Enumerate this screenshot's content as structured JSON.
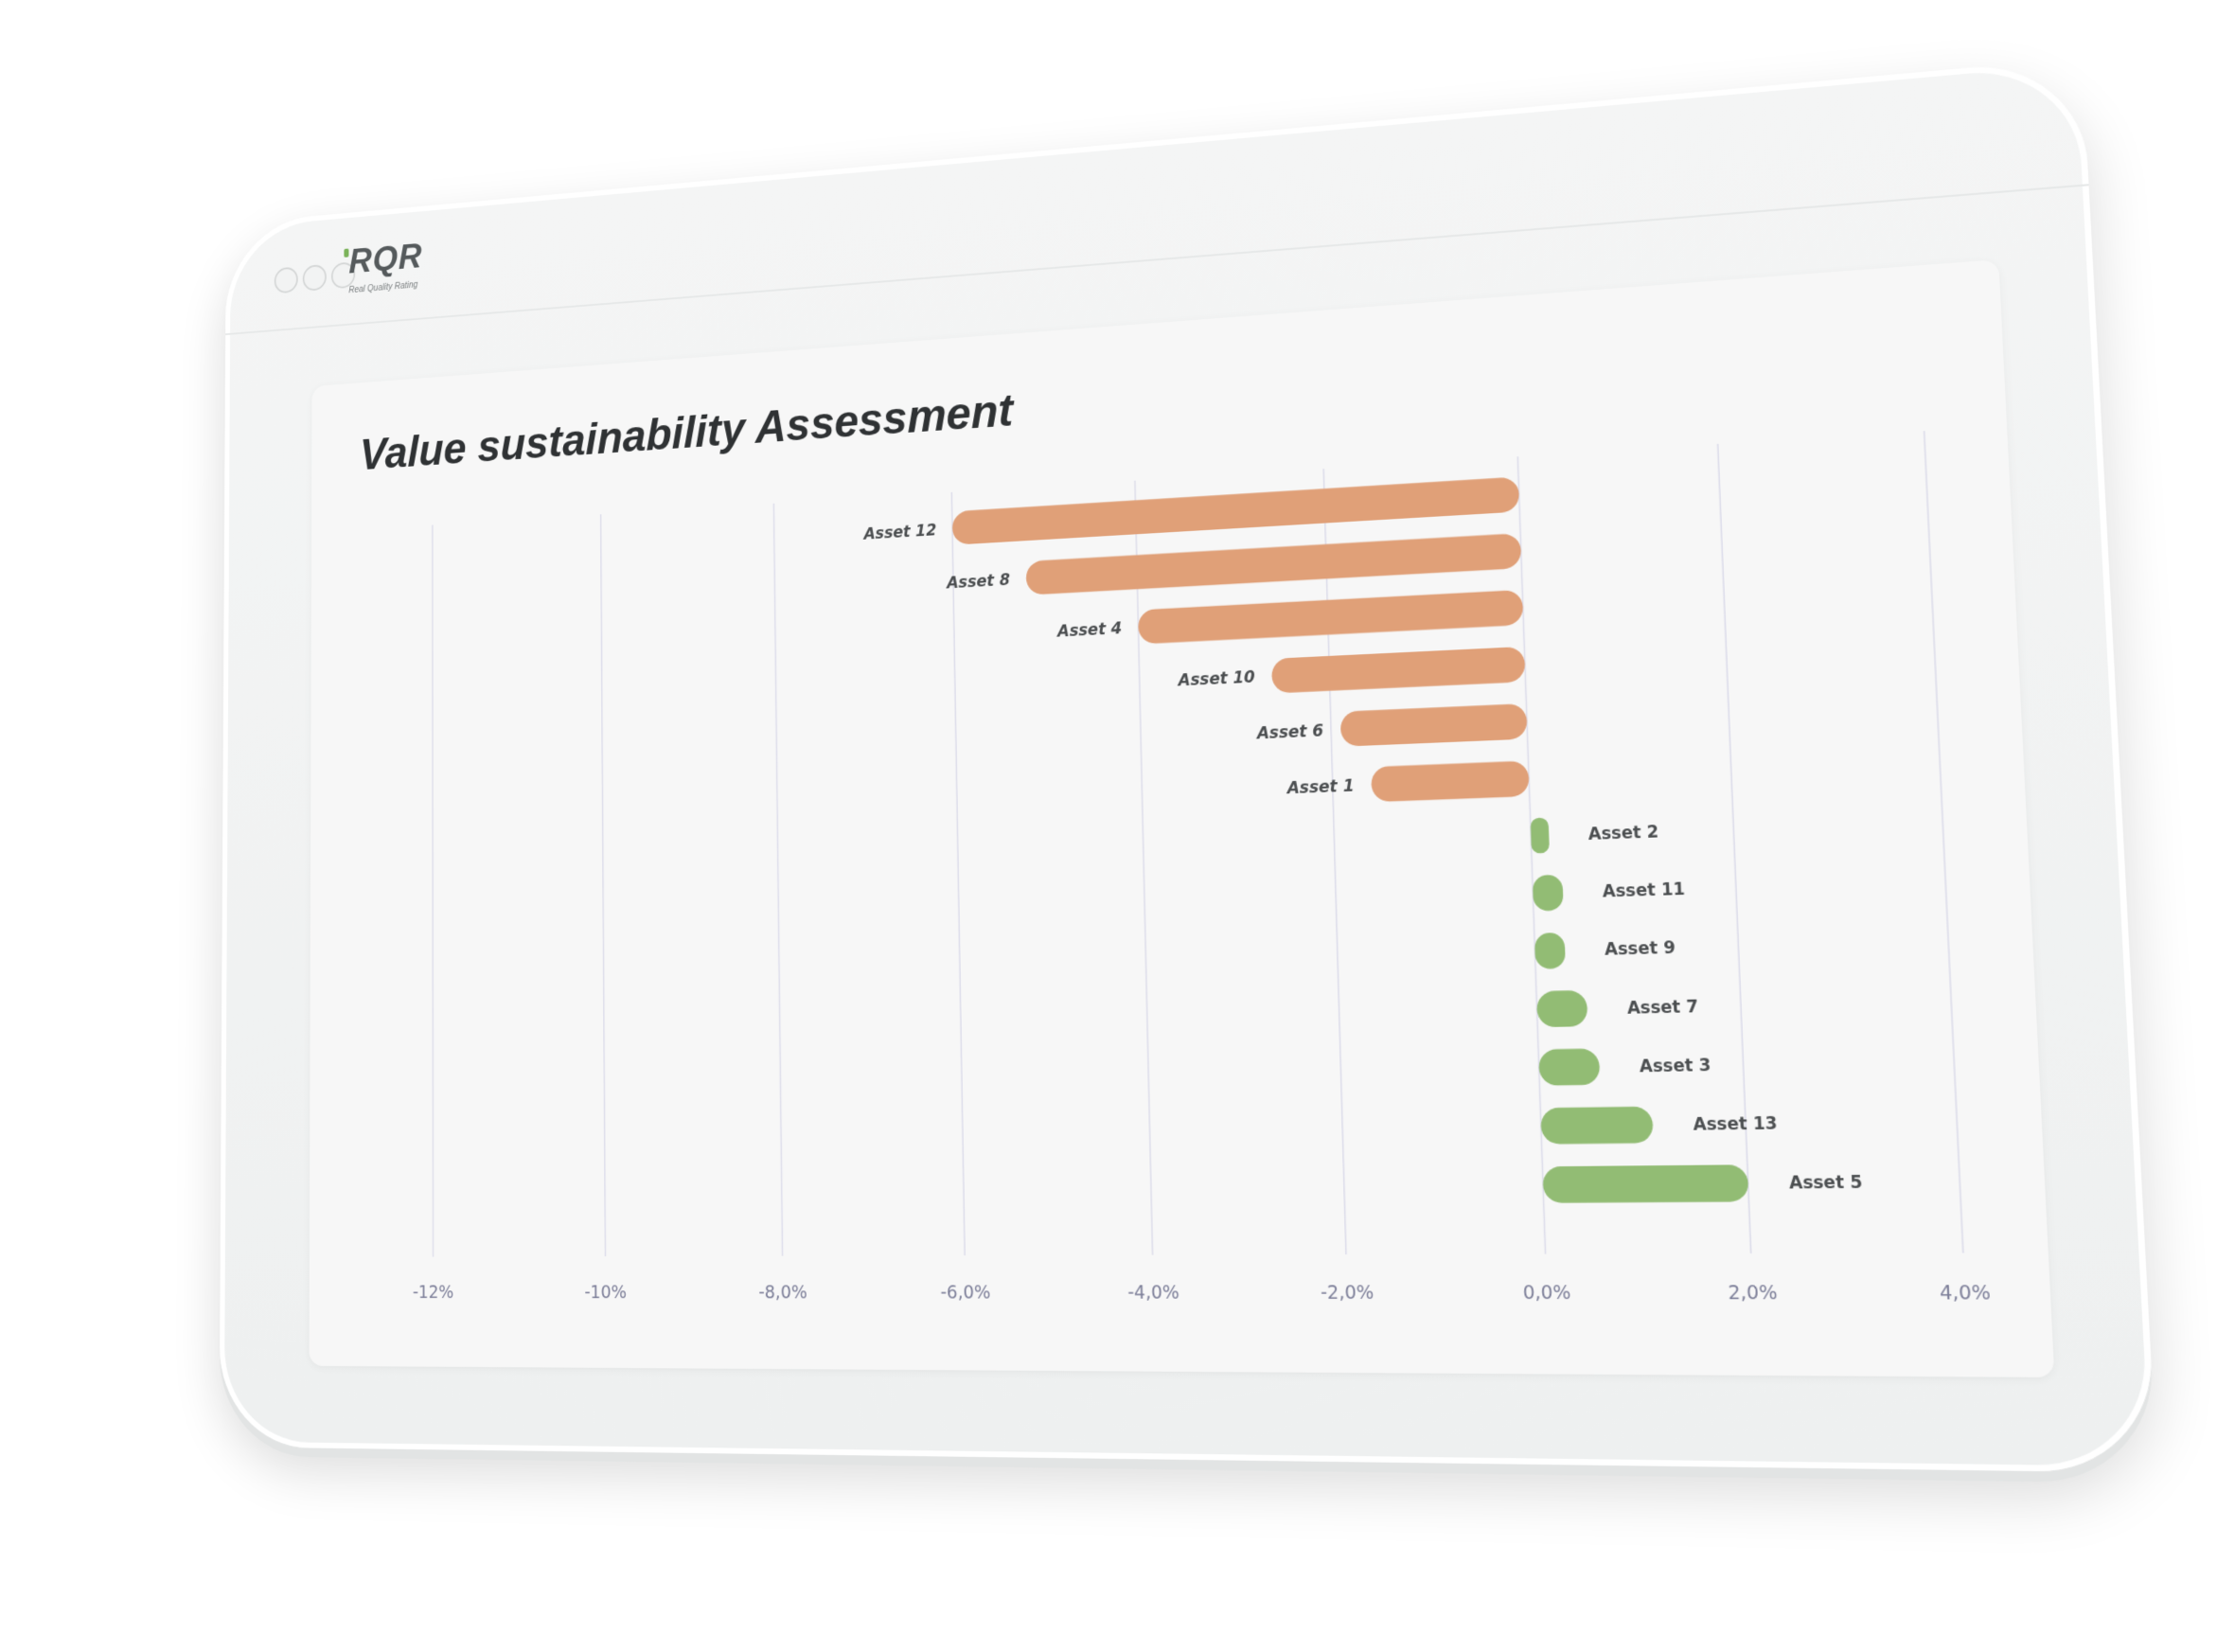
{
  "app": {
    "logo_text": "RQR",
    "logo_subtitle": "Real Quality Rating"
  },
  "colors": {
    "negative": "#e0a078",
    "positive": "#92bc74",
    "grid": "#dcdcea",
    "tick_label": "#7c7e98"
  },
  "chart_data": {
    "type": "bar",
    "orientation": "horizontal",
    "title": "Value sustainability Assessment",
    "xlabel": "",
    "ylabel": "",
    "grid": true,
    "xlim": [
      -12,
      4
    ],
    "x_ticks": [
      -12,
      -10,
      -8,
      -6,
      -4,
      -2,
      0,
      2,
      4
    ],
    "x_tick_labels": [
      "-12%",
      "-10%",
      "-8,0%",
      "-6,0%",
      "-4,0%",
      "-2,0%",
      "0,0%",
      "2,0%",
      "4,0%"
    ],
    "categories": [
      "Asset 12",
      "Asset 8",
      "Asset 4",
      "Asset 10",
      "Asset 6",
      "Asset 1",
      "Asset 2",
      "Asset 11",
      "Asset 9",
      "Asset 7",
      "Asset 3",
      "Asset 13",
      "Asset 5"
    ],
    "values": [
      -6.0,
      -5.2,
      -4.0,
      -2.6,
      -1.9,
      -1.6,
      0.1,
      0.3,
      0.3,
      0.5,
      0.6,
      1.1,
      2.0
    ]
  }
}
